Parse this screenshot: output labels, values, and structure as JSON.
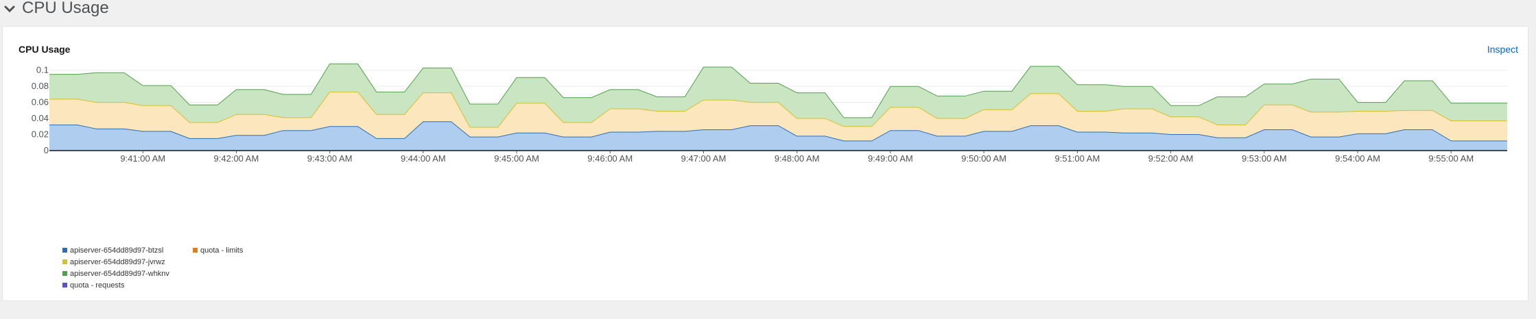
{
  "section": {
    "title": "CPU Usage"
  },
  "card": {
    "title": "CPU Usage",
    "inspect_label": "Inspect"
  },
  "chart_data": {
    "type": "area",
    "stacked": true,
    "title": "CPU Usage",
    "ylim": [
      0,
      0.11
    ],
    "yticks": [
      0,
      0.02,
      0.04,
      0.06,
      0.08,
      0.1
    ],
    "ytick_labels": [
      "0",
      "0.02",
      "0.04",
      "0.06",
      "0.08",
      "0.1"
    ],
    "x_range": [
      "9:40:00 AM",
      "9:55:36 AM"
    ],
    "x_start_seconds": 0,
    "x_end_seconds": 936,
    "xtick_seconds": [
      60,
      120,
      180,
      240,
      300,
      360,
      420,
      480,
      540,
      600,
      660,
      720,
      780,
      840,
      900
    ],
    "xtick_labels": [
      "9:41:00 AM",
      "9:42:00 AM",
      "9:43:00 AM",
      "9:44:00 AM",
      "9:45:00 AM",
      "9:46:00 AM",
      "9:47:00 AM",
      "9:48:00 AM",
      "9:49:00 AM",
      "9:50:00 AM",
      "9:51:00 AM",
      "9:52:00 AM",
      "9:53:00 AM",
      "9:54:00 AM",
      "9:55:00 AM"
    ],
    "x_seconds": [
      0,
      18,
      30,
      48,
      60,
      78,
      90,
      108,
      120,
      138,
      150,
      168,
      180,
      198,
      210,
      228,
      240,
      258,
      270,
      288,
      300,
      318,
      330,
      348,
      360,
      378,
      390,
      408,
      420,
      438,
      450,
      468,
      480,
      498,
      510,
      528,
      540,
      558,
      570,
      588,
      600,
      618,
      630,
      648,
      660,
      678,
      690,
      708,
      720,
      738,
      750,
      768,
      780,
      798,
      810,
      828,
      840,
      858,
      870,
      888,
      900,
      918,
      936
    ],
    "series": [
      {
        "name": "apiserver-654dd89d97-btzsl",
        "color": "#2a6ebb",
        "fill": "#afcdef",
        "values": [
          0.032,
          0.032,
          0.027,
          0.027,
          0.024,
          0.024,
          0.015,
          0.015,
          0.019,
          0.019,
          0.025,
          0.025,
          0.03,
          0.03,
          0.015,
          0.015,
          0.036,
          0.036,
          0.017,
          0.017,
          0.022,
          0.022,
          0.017,
          0.017,
          0.023,
          0.023,
          0.024,
          0.024,
          0.026,
          0.026,
          0.031,
          0.031,
          0.018,
          0.018,
          0.012,
          0.012,
          0.025,
          0.025,
          0.018,
          0.018,
          0.024,
          0.024,
          0.031,
          0.031,
          0.023,
          0.023,
          0.022,
          0.022,
          0.02,
          0.02,
          0.016,
          0.016,
          0.026,
          0.026,
          0.017,
          0.017,
          0.021,
          0.021,
          0.026,
          0.026,
          0.012,
          0.012,
          0.012
        ]
      },
      {
        "name": "apiserver-654dd89d97-jvrwz",
        "color": "#d8c02a",
        "fill": "#fbe6bd",
        "values": [
          0.032,
          0.032,
          0.033,
          0.033,
          0.032,
          0.032,
          0.02,
          0.02,
          0.026,
          0.026,
          0.016,
          0.016,
          0.043,
          0.043,
          0.03,
          0.03,
          0.036,
          0.036,
          0.012,
          0.012,
          0.037,
          0.037,
          0.018,
          0.018,
          0.029,
          0.029,
          0.025,
          0.025,
          0.037,
          0.037,
          0.029,
          0.029,
          0.022,
          0.022,
          0.018,
          0.018,
          0.029,
          0.029,
          0.022,
          0.022,
          0.027,
          0.027,
          0.04,
          0.04,
          0.026,
          0.026,
          0.03,
          0.03,
          0.022,
          0.022,
          0.016,
          0.016,
          0.031,
          0.031,
          0.031,
          0.031,
          0.028,
          0.028,
          0.024,
          0.024,
          0.025,
          0.025,
          0.025
        ]
      },
      {
        "name": "apiserver-654dd89d97-whknv",
        "color": "#4fa04a",
        "fill": "#c9e5c1",
        "values": [
          0.031,
          0.031,
          0.037,
          0.037,
          0.025,
          0.025,
          0.022,
          0.022,
          0.031,
          0.031,
          0.029,
          0.029,
          0.035,
          0.035,
          0.028,
          0.028,
          0.031,
          0.031,
          0.029,
          0.029,
          0.032,
          0.032,
          0.031,
          0.031,
          0.024,
          0.024,
          0.018,
          0.018,
          0.041,
          0.041,
          0.024,
          0.024,
          0.032,
          0.032,
          0.011,
          0.011,
          0.026,
          0.026,
          0.028,
          0.028,
          0.023,
          0.023,
          0.034,
          0.034,
          0.033,
          0.033,
          0.028,
          0.028,
          0.014,
          0.014,
          0.035,
          0.035,
          0.026,
          0.026,
          0.041,
          0.041,
          0.011,
          0.011,
          0.037,
          0.037,
          0.022,
          0.022,
          0.022
        ]
      },
      {
        "name": "quota - limits",
        "color": "#ec7a08",
        "values": []
      },
      {
        "name": "quota - requests",
        "color": "#5752d1",
        "values": []
      }
    ],
    "legend": [
      {
        "label": "apiserver-654dd89d97-btzsl",
        "color": "#2a6ebb"
      },
      {
        "label": "apiserver-654dd89d97-jvrwz",
        "color": "#d8c02a"
      },
      {
        "label": "apiserver-654dd89d97-whknv",
        "color": "#4fa04a"
      },
      {
        "label": "quota - requests",
        "color": "#5752d1"
      },
      {
        "label": "quota - limits",
        "color": "#ec7a08"
      }
    ],
    "legend_position": "bottom-left"
  }
}
